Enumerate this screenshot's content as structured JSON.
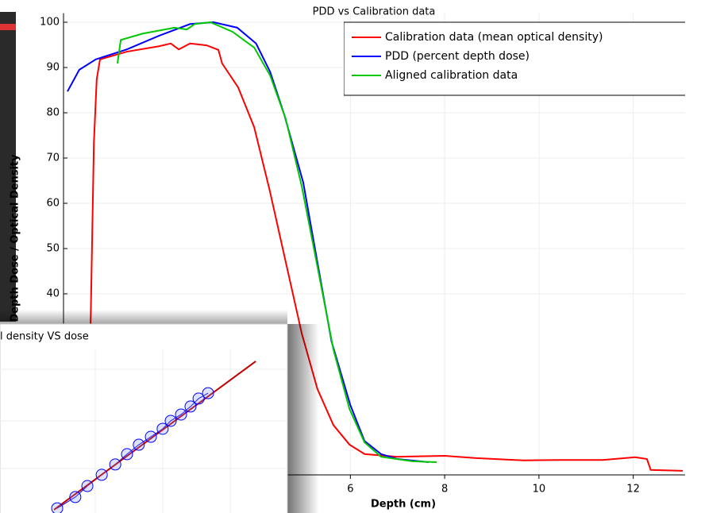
{
  "chart_data": [
    {
      "type": "line",
      "title": "PDD vs Calibration data",
      "xlabel": "Depth (cm)",
      "ylabel": "Depth Dose / Optical Density",
      "xlim": [
        0,
        13.1
      ],
      "ylim": [
        0,
        102
      ],
      "xticks": [
        6,
        8,
        10,
        12
      ],
      "yticks": [
        40,
        50,
        60,
        70,
        80,
        90,
        100
      ],
      "grid": true,
      "legend": "upper right",
      "series": [
        {
          "name": "Calibration data (mean optical density)",
          "color": "#ff0000",
          "x": [
            0.49,
            0.56,
            0.62,
            0.69,
            1.26,
            1.94,
            2.19,
            2.36,
            2.6,
            2.95,
            3.2,
            3.28,
            3.62,
            3.96,
            4.29,
            4.63,
            4.97,
            5.3,
            5.64,
            5.98,
            6.3,
            7.0,
            8.0,
            8.67,
            9.68,
            10.35,
            11.36,
            12.04,
            12.29,
            12.37,
            13.05
          ],
          "values": [
            33,
            73.3,
            87.4,
            91.8,
            93.5,
            94.7,
            95.3,
            94,
            95.3,
            94.9,
            93.9,
            90.9,
            85.6,
            76.8,
            62.8,
            47,
            31.2,
            19,
            11,
            6.7,
            4.6,
            4,
            4.2,
            3.7,
            3.2,
            3.3,
            3.3,
            3.9,
            3.5,
            1.1,
            0.9
          ]
        },
        {
          "name": "PDD (percent depth dose)",
          "color": "#0000ff",
          "x": [
            0,
            0.25,
            0.6,
            1.26,
            1.94,
            2.6,
            3.1,
            3.6,
            4.0,
            4.3,
            4.6,
            5.0,
            5.3,
            5.6,
            6.0,
            6.3,
            6.65,
            7.0,
            7.66
          ],
          "values": [
            84.7,
            89.5,
            91.8,
            94,
            97,
            99.6,
            100,
            98.8,
            95.3,
            89,
            79.5,
            64.6,
            47,
            29.5,
            15.4,
            7.5,
            4.6,
            3.5,
            2.8
          ]
        },
        {
          "name": "Aligned calibration data",
          "color": "#00c800",
          "x": [
            1.06,
            1.13,
            1.6,
            2.27,
            2.53,
            2.7,
            3.03,
            3.5,
            3.96,
            4.3,
            4.63,
            4.97,
            5.3,
            5.64,
            5.98,
            6.3,
            6.65,
            7.32,
            7.83
          ],
          "values": [
            90.9,
            96.1,
            97.5,
            98.8,
            98.4,
            99.6,
            100,
            97.9,
            94.4,
            88.2,
            78.6,
            63.7,
            46.1,
            27.7,
            14.6,
            7.2,
            4,
            3,
            2.8
          ]
        }
      ]
    },
    {
      "type": "scatter",
      "title": "l density VS dose",
      "xlim": [
        0,
        10
      ],
      "ylim": [
        0,
        10
      ],
      "series": [
        {
          "color": "#0000ff",
          "x": [
            1.99,
            2.62,
            3.04,
            3.54,
            4.01,
            4.42,
            4.83,
            5.25,
            5.66,
            5.94,
            6.3,
            6.63,
            6.91,
            7.24
          ],
          "values": [
            0.26,
            0.88,
            1.49,
            2.11,
            2.68,
            3.25,
            3.77,
            4.21,
            4.65,
            5.09,
            5.44,
            5.88,
            6.32,
            6.62
          ]
        },
        {
          "color": "#c00000",
          "x": [
            1.88,
            8.9
          ],
          "values": [
            0.18,
            8.38
          ]
        }
      ]
    }
  ]
}
